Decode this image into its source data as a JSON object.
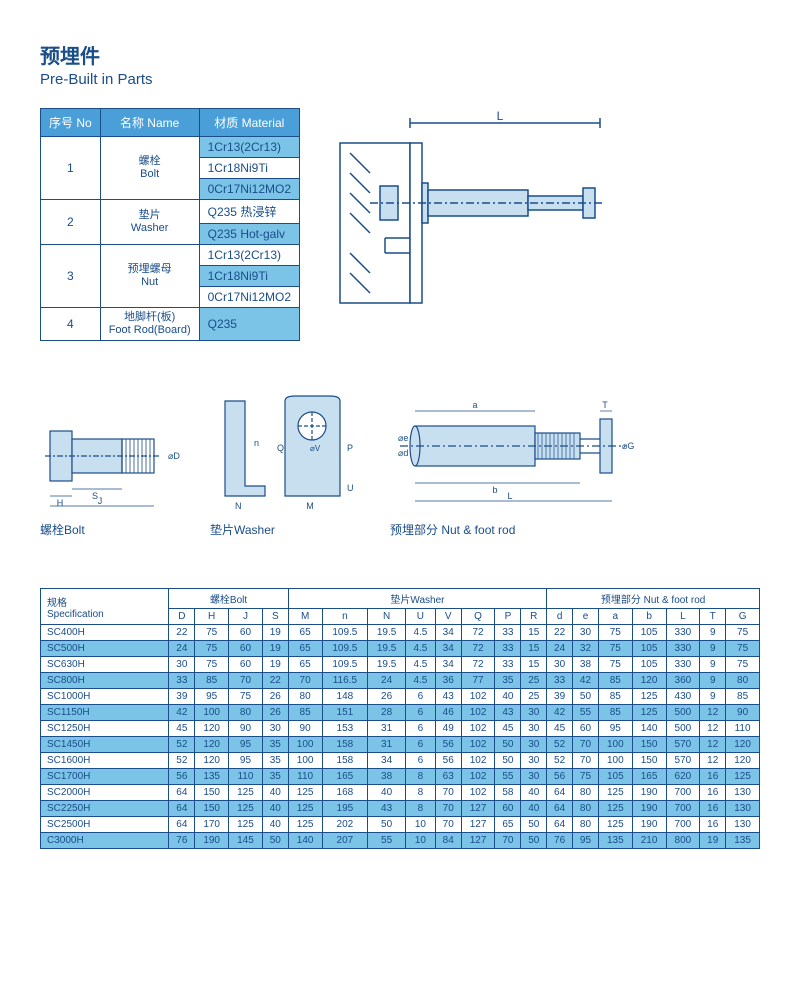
{
  "title": {
    "cn": "预埋件",
    "en": "Pre-Built in Parts"
  },
  "materials": {
    "headers": {
      "no": "序号 No",
      "name": "名称 Name",
      "material": "材质 Material"
    },
    "rows": [
      {
        "no": "1",
        "name_cn": "螺栓",
        "name_en": "Bolt",
        "mats": [
          "1Cr13(2Cr13)",
          "1Cr18Ni9Ti",
          "0Cr17Ni12MO2"
        ],
        "alt_idx": [
          0,
          2
        ]
      },
      {
        "no": "2",
        "name_cn": "垫片",
        "name_en": "Washer",
        "mats": [
          "Q235 热浸锌",
          "Q235 Hot-galv"
        ],
        "alt_idx": [
          1
        ]
      },
      {
        "no": "3",
        "name_cn": "预埋螺母",
        "name_en": "Nut",
        "mats": [
          "1Cr13(2Cr13)",
          "1Cr18Ni9Ti",
          "0Cr17Ni12MO2"
        ],
        "alt_idx": [
          1
        ]
      },
      {
        "no": "4",
        "name_cn": "地脚杆(板)",
        "name_en": "Foot Rod(Board)",
        "mats": [
          "Q235"
        ],
        "alt_idx": [
          0
        ]
      }
    ]
  },
  "diagram_labels": {
    "bolt": "螺栓Bolt",
    "washer": "垫片Washer",
    "nutrod": "预埋部分 Nut & foot rod"
  },
  "spec": {
    "title_cn": "规格",
    "title_en": "Specification",
    "groups": [
      {
        "label": "螺栓Bolt",
        "cols": [
          "D",
          "H",
          "J",
          "S"
        ]
      },
      {
        "label": "垫片Washer",
        "cols": [
          "M",
          "n",
          "N",
          "U",
          "V",
          "Q",
          "P",
          "R"
        ]
      },
      {
        "label": "预埋部分 Nut & foot rod",
        "cols": [
          "d",
          "e",
          "a",
          "b",
          "L",
          "T",
          "G"
        ]
      }
    ],
    "rows": [
      {
        "spec": "SC400H",
        "vals": [
          22,
          75,
          60,
          19,
          65,
          "109.5",
          "19.5",
          "4.5",
          34,
          72,
          33,
          15,
          22,
          30,
          75,
          105,
          330,
          9,
          75
        ]
      },
      {
        "spec": "SC500H",
        "vals": [
          24,
          75,
          60,
          19,
          65,
          "109.5",
          "19.5",
          "4.5",
          34,
          72,
          33,
          15,
          24,
          32,
          75,
          105,
          330,
          9,
          75
        ]
      },
      {
        "spec": "SC630H",
        "vals": [
          30,
          75,
          60,
          19,
          65,
          "109.5",
          "19.5",
          "4.5",
          34,
          72,
          33,
          15,
          30,
          38,
          75,
          105,
          330,
          9,
          75
        ]
      },
      {
        "spec": "SC800H",
        "vals": [
          33,
          85,
          70,
          22,
          70,
          "116.5",
          24,
          "4.5",
          36,
          77,
          35,
          25,
          33,
          42,
          85,
          120,
          360,
          9,
          80
        ]
      },
      {
        "spec": "SC1000H",
        "vals": [
          39,
          95,
          75,
          26,
          80,
          148,
          26,
          6,
          43,
          102,
          40,
          25,
          39,
          50,
          85,
          125,
          430,
          9,
          85
        ]
      },
      {
        "spec": "SC1150H",
        "vals": [
          42,
          100,
          80,
          26,
          85,
          151,
          28,
          6,
          46,
          102,
          43,
          30,
          42,
          55,
          85,
          125,
          500,
          12,
          90
        ]
      },
      {
        "spec": "SC1250H",
        "vals": [
          45,
          120,
          90,
          30,
          90,
          153,
          31,
          6,
          49,
          102,
          45,
          30,
          45,
          60,
          95,
          140,
          500,
          12,
          110
        ]
      },
      {
        "spec": "SC1450H",
        "vals": [
          52,
          120,
          95,
          35,
          100,
          158,
          31,
          6,
          56,
          102,
          50,
          30,
          52,
          70,
          100,
          150,
          570,
          12,
          120
        ]
      },
      {
        "spec": "SC1600H",
        "vals": [
          52,
          120,
          95,
          35,
          100,
          158,
          34,
          6,
          56,
          102,
          50,
          30,
          52,
          70,
          100,
          150,
          570,
          12,
          120
        ]
      },
      {
        "spec": "SC1700H",
        "vals": [
          56,
          135,
          110,
          35,
          110,
          165,
          38,
          8,
          63,
          102,
          55,
          30,
          56,
          75,
          105,
          165,
          620,
          16,
          125
        ]
      },
      {
        "spec": "SC2000H",
        "vals": [
          64,
          150,
          125,
          40,
          125,
          168,
          40,
          8,
          70,
          102,
          58,
          40,
          64,
          80,
          125,
          190,
          700,
          16,
          130
        ]
      },
      {
        "spec": "SC2250H",
        "vals": [
          64,
          150,
          125,
          40,
          125,
          195,
          43,
          8,
          70,
          127,
          60,
          40,
          64,
          80,
          125,
          190,
          700,
          16,
          130
        ]
      },
      {
        "spec": "SC2500H",
        "vals": [
          64,
          170,
          125,
          40,
          125,
          202,
          50,
          10,
          70,
          127,
          65,
          50,
          64,
          80,
          125,
          190,
          700,
          16,
          130
        ]
      },
      {
        "spec": "C3000H",
        "vals": [
          76,
          190,
          145,
          50,
          140,
          207,
          55,
          10,
          84,
          127,
          70,
          50,
          76,
          95,
          135,
          210,
          800,
          19,
          135
        ]
      }
    ]
  },
  "colors": {
    "line": "#1a4d8a",
    "fill": "#c8dff0",
    "alt_row": "#7bc4e8",
    "header_bg": "#4a9fd8"
  }
}
